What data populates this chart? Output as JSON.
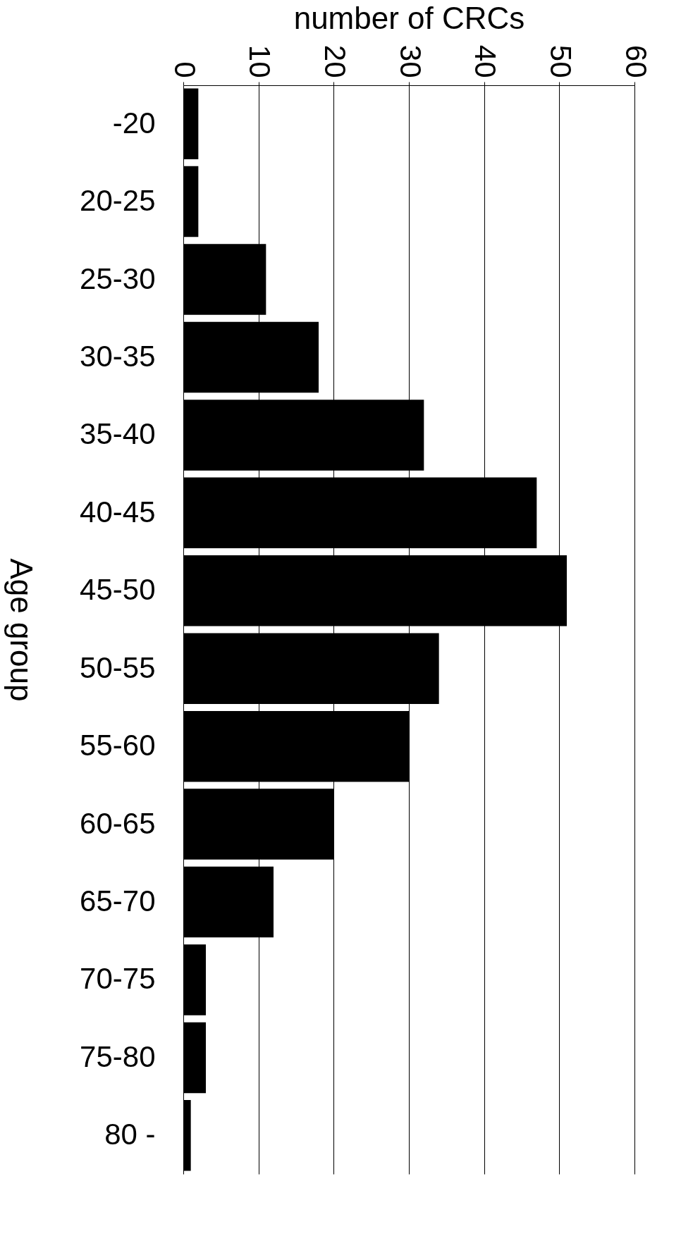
{
  "chart_data": {
    "type": "bar",
    "orientation": "horizontal",
    "xlabel": "number of CRCs",
    "ylabel": "Age group",
    "categories": [
      "-20",
      "20-25",
      "25-30",
      "30-35",
      "35-40",
      "40-45",
      "45-50",
      "50-55",
      "55-60",
      "60-65",
      "65-70",
      "70-75",
      "75-80",
      "80 -"
    ],
    "values": [
      2,
      2,
      11,
      18,
      32,
      47,
      51,
      34,
      30,
      20,
      12,
      3,
      3,
      1
    ],
    "color": "#000000",
    "xlim": [
      0,
      60
    ],
    "xticks": [
      0,
      10,
      20,
      30,
      40,
      50,
      60
    ],
    "grid": "x"
  }
}
